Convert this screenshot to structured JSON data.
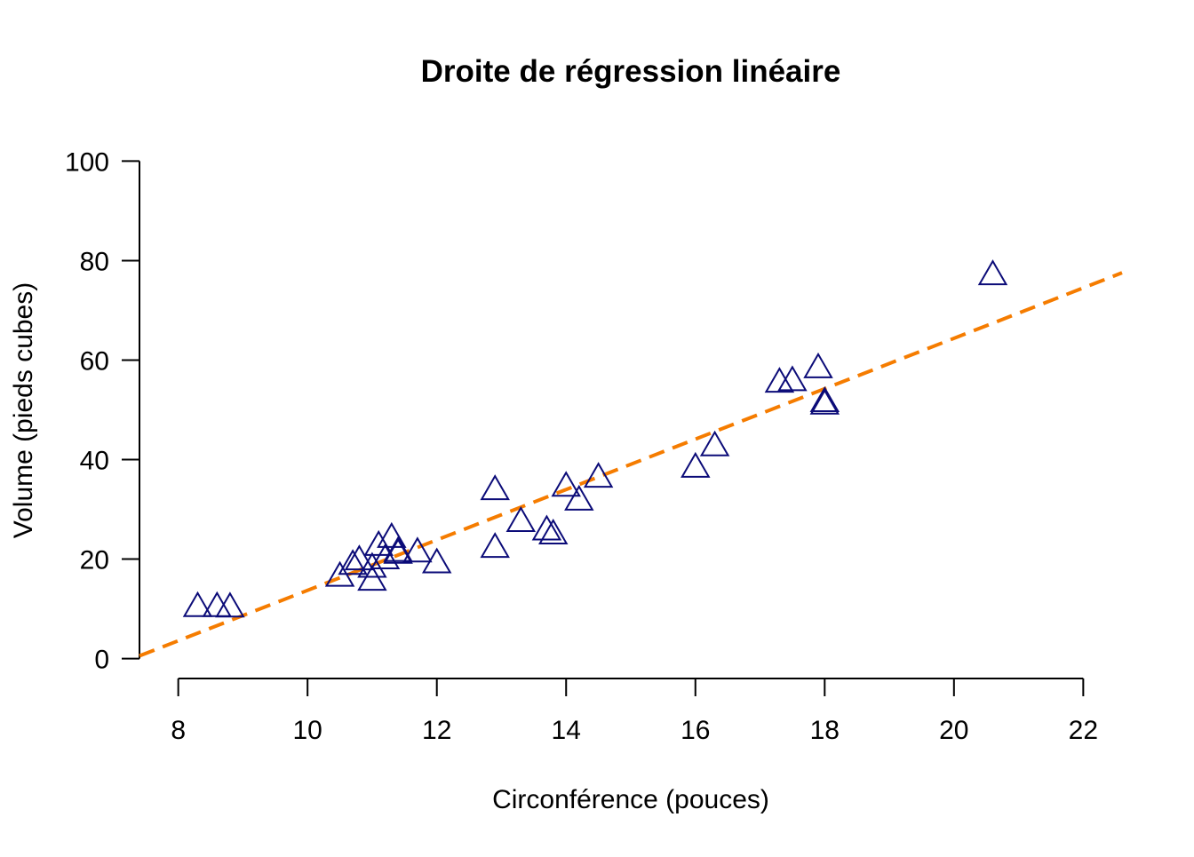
{
  "chart_data": {
    "type": "scatter",
    "title": "Droite de régression linéaire",
    "xlabel": "Circonférence (pouces)",
    "ylabel": "Volume (pieds cubes)",
    "xlim": [
      7.4,
      22.6
    ],
    "ylim": [
      -4,
      104
    ],
    "x_ticks": [
      8,
      10,
      12,
      14,
      16,
      18,
      20,
      22
    ],
    "y_ticks": [
      0,
      20,
      40,
      60,
      80,
      100
    ],
    "x_tick_labels": [
      "8",
      "10",
      "12",
      "14",
      "16",
      "18",
      "20",
      "22"
    ],
    "y_tick_labels": [
      "0",
      "20",
      "40",
      "60",
      "80",
      "100"
    ],
    "grid": false,
    "point_marker": "open-triangle",
    "point_color": "#0b0b78",
    "line_color": "#f57c00",
    "line_style": "dashed",
    "series": [
      {
        "x": [
          8.3,
          8.6,
          8.8,
          10.5,
          10.7,
          10.8,
          11.0,
          11.0,
          11.1,
          11.2,
          11.3,
          11.4,
          11.4,
          11.7,
          12.0,
          12.9,
          12.9,
          13.3,
          13.7,
          13.8,
          14.0,
          14.2,
          14.5,
          16.0,
          16.3,
          17.3,
          17.5,
          17.9,
          18.0,
          18.0,
          20.6
        ],
        "y": [
          10.3,
          10.3,
          10.2,
          16.4,
          18.8,
          19.7,
          15.6,
          18.2,
          22.6,
          19.9,
          24.2,
          21.0,
          21.4,
          21.3,
          19.1,
          22.2,
          33.8,
          27.4,
          25.7,
          24.9,
          34.5,
          31.7,
          36.3,
          38.3,
          42.6,
          55.4,
          55.7,
          58.3,
          51.5,
          51.0,
          77.0
        ]
      }
    ],
    "regression": {
      "intercept": -36.94,
      "slope": 5.066,
      "x_range": [
        7.4,
        22.6
      ]
    }
  }
}
